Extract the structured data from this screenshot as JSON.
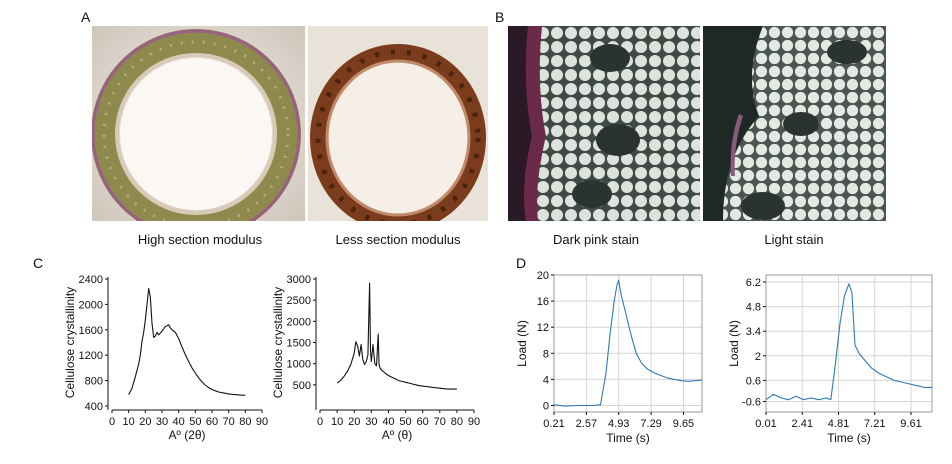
{
  "panels": {
    "a": {
      "letter": "A",
      "captions": [
        "High section modulus",
        "Less section modulus"
      ]
    },
    "b": {
      "letter": "B",
      "captions": [
        "Dark pink stain",
        "Light stain"
      ]
    },
    "c": {
      "letter": "C"
    },
    "d": {
      "letter": "D"
    }
  },
  "colors": {
    "xrd_line": "#111111",
    "load_line": "#2f7ab8"
  },
  "chart_data": [
    {
      "id": "c1",
      "type": "line",
      "xlabel": "Aº (2θ)",
      "ylabel": "Cellulose crystallinity",
      "xlim": [
        0,
        90
      ],
      "ylim": [
        400,
        2400
      ],
      "xticks": [
        0,
        10,
        20,
        30,
        40,
        50,
        60,
        70,
        80,
        90
      ],
      "yticks": [
        400,
        800,
        1200,
        1600,
        2000,
        2400
      ],
      "grid": false,
      "series": [
        {
          "x": [
            10,
            12,
            14,
            16,
            17,
            18,
            19,
            20,
            21,
            22,
            23,
            24,
            25,
            26,
            27,
            28,
            30,
            32,
            34,
            35,
            36,
            38,
            40,
            42,
            44,
            46,
            48,
            50,
            52,
            54,
            56,
            58,
            60,
            62,
            64,
            66,
            68,
            70,
            72,
            74,
            76,
            78,
            80
          ],
          "y": [
            580,
            680,
            860,
            1060,
            1200,
            1420,
            1560,
            1750,
            2000,
            2250,
            2120,
            1700,
            1480,
            1500,
            1560,
            1520,
            1580,
            1650,
            1680,
            1630,
            1600,
            1560,
            1460,
            1330,
            1210,
            1100,
            1000,
            920,
            840,
            780,
            730,
            690,
            660,
            640,
            620,
            610,
            600,
            590,
            585,
            580,
            575,
            570,
            570
          ]
        }
      ]
    },
    {
      "id": "c2",
      "type": "line",
      "xlabel": "Aº (θ)",
      "ylabel": "Cellulose crystallinity",
      "xlim": [
        0,
        90
      ],
      "ylim": [
        0,
        3000
      ],
      "xticks": [
        0,
        10,
        20,
        30,
        40,
        50,
        60,
        70,
        80,
        90
      ],
      "yticks": [
        500,
        1000,
        1500,
        2000,
        2500,
        3000
      ],
      "grid": false,
      "series": [
        {
          "x": [
            10,
            12,
            14,
            16,
            18,
            20,
            21,
            22,
            23,
            24,
            25,
            26,
            27,
            28,
            29,
            29.5,
            30,
            31,
            32,
            33,
            34,
            34.5,
            35,
            36,
            38,
            40,
            42,
            44,
            46,
            48,
            50,
            52,
            54,
            56,
            58,
            60,
            62,
            64,
            66,
            68,
            70,
            72,
            74,
            76,
            78,
            80
          ],
          "y": [
            540,
            600,
            700,
            820,
            980,
            1250,
            1520,
            1420,
            1180,
            1450,
            1100,
            980,
            1050,
            1200,
            2900,
            1300,
            1050,
            1450,
            1000,
            950,
            1700,
            1000,
            900,
            850,
            780,
            720,
            680,
            640,
            600,
            580,
            560,
            540,
            520,
            500,
            480,
            470,
            460,
            450,
            440,
            430,
            420,
            410,
            405,
            400,
            400,
            400
          ]
        }
      ]
    },
    {
      "id": "d1",
      "type": "line",
      "xlabel": "Time (s)",
      "ylabel": "Load (N)",
      "xlim": [
        0.21,
        11.0
      ],
      "ylim": [
        -1,
        20
      ],
      "xticks": [
        0.21,
        2.57,
        4.93,
        7.29,
        9.65
      ],
      "yticks": [
        0,
        4,
        8,
        12,
        16,
        20
      ],
      "grid": true,
      "series": [
        {
          "x": [
            0.21,
            1.0,
            2.0,
            3.0,
            3.6,
            4.0,
            4.3,
            4.6,
            4.8,
            4.93,
            5.1,
            5.4,
            5.8,
            6.2,
            6.6,
            7.0,
            7.5,
            8.0,
            8.5,
            9.0,
            9.5,
            10.0,
            10.5,
            11.0
          ],
          "y": [
            0.1,
            -0.1,
            0.0,
            0.0,
            0.1,
            5.0,
            11.0,
            16.0,
            18.5,
            19.2,
            17.0,
            14.5,
            11.0,
            8.0,
            6.5,
            5.6,
            5.0,
            4.6,
            4.2,
            4.0,
            3.8,
            3.7,
            3.8,
            3.9
          ]
        }
      ]
    },
    {
      "id": "d2",
      "type": "line",
      "xlabel": "Time (s)",
      "ylabel": "Load (N)",
      "xlim": [
        0.01,
        11.0
      ],
      "ylim": [
        -1.2,
        6.6
      ],
      "xticks": [
        0.01,
        2.41,
        4.81,
        7.21,
        9.61
      ],
      "yticks": [
        -0.6,
        0.6,
        2.0,
        3.4,
        4.8,
        6.2
      ],
      "grid": true,
      "series": [
        {
          "x": [
            0.01,
            0.5,
            1.0,
            1.5,
            2.0,
            2.5,
            3.0,
            3.5,
            4.0,
            4.3,
            4.6,
            4.9,
            5.2,
            5.5,
            5.7,
            5.9,
            6.2,
            6.6,
            7.0,
            7.5,
            8.0,
            8.5,
            9.0,
            9.5,
            10.0,
            10.5,
            11.0
          ],
          "y": [
            -0.5,
            -0.2,
            -0.4,
            -0.5,
            -0.3,
            -0.5,
            -0.4,
            -0.5,
            -0.4,
            -0.5,
            1.5,
            3.8,
            5.4,
            6.1,
            5.6,
            2.6,
            2.1,
            1.7,
            1.3,
            1.0,
            0.8,
            0.6,
            0.5,
            0.4,
            0.3,
            0.2,
            0.2
          ]
        }
      ]
    }
  ]
}
